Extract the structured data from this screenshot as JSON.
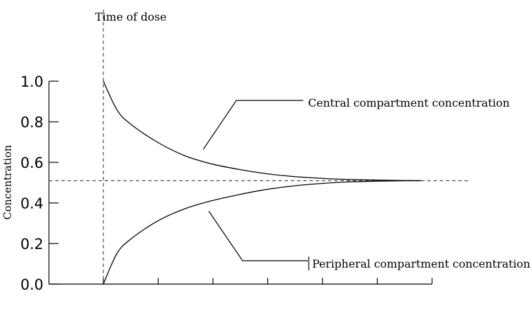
{
  "chart_data": {
    "type": "line",
    "title": "",
    "ylabel": "Concentration",
    "xlabel": "",
    "ylim": [
      0,
      1.0
    ],
    "y_ticks": [
      "0.0",
      "0.2",
      "0.4",
      "0.6",
      "0.8",
      "1.0"
    ],
    "x_tick_count": 6,
    "grid": false,
    "legend": "none",
    "dose_label": "Time of dose",
    "equilibrium_level": 0.51,
    "series": [
      {
        "name": "Central compartment concentration",
        "x": [
          0,
          0.25,
          0.5,
          1,
          1.5,
          2,
          2.5,
          3,
          3.5,
          4,
          4.5,
          5,
          5.5,
          5.9
        ],
        "values": [
          1.0,
          0.86,
          0.79,
          0.7,
          0.634,
          0.593,
          0.566,
          0.545,
          0.531,
          0.522,
          0.516,
          0.513,
          0.511,
          0.51
        ]
      },
      {
        "name": "Peripheral compartment concentration",
        "x": [
          0,
          0.25,
          0.5,
          1,
          1.5,
          2,
          2.5,
          3,
          3.5,
          4,
          4.5,
          5,
          5.5,
          5.9
        ],
        "values": [
          0.0,
          0.15,
          0.22,
          0.31,
          0.37,
          0.41,
          0.44,
          0.465,
          0.483,
          0.495,
          0.503,
          0.507,
          0.509,
          0.51
        ]
      }
    ]
  }
}
